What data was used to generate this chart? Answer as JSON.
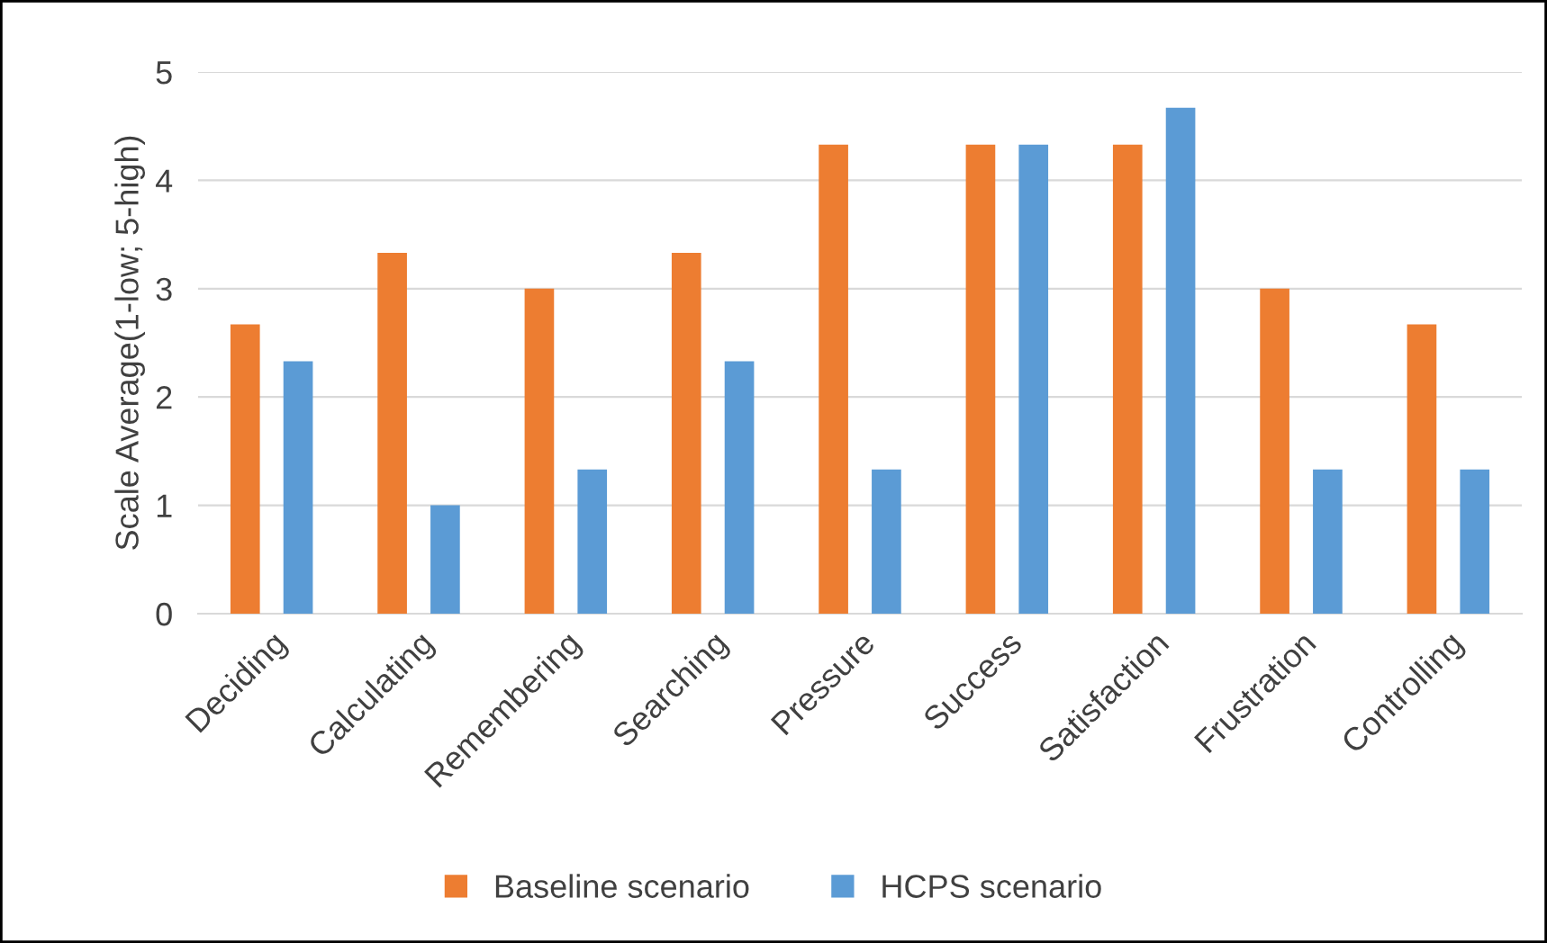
{
  "chart_data": {
    "type": "bar",
    "ylabel": "Scale Average(1-low; 5-high)",
    "categories": [
      "Deciding",
      "Calculating",
      "Remembering",
      "Searching",
      "Pressure",
      "Success",
      "Satisfaction",
      "Frustration",
      "Controlling"
    ],
    "series": [
      {
        "name": "Baseline scenario",
        "color": "#ed7d31",
        "values": [
          2.67,
          3.33,
          3.0,
          3.33,
          4.33,
          4.33,
          4.33,
          3.0,
          2.67
        ]
      },
      {
        "name": "HCPS scenario",
        "color": "#5b9bd5",
        "values": [
          2.33,
          1.0,
          1.33,
          2.33,
          1.33,
          4.33,
          4.67,
          1.33,
          1.33
        ]
      }
    ],
    "ylim": [
      0,
      5
    ],
    "yticks": [
      0,
      1,
      2,
      3,
      4,
      5
    ],
    "grid": "y",
    "legend": "bottom"
  }
}
